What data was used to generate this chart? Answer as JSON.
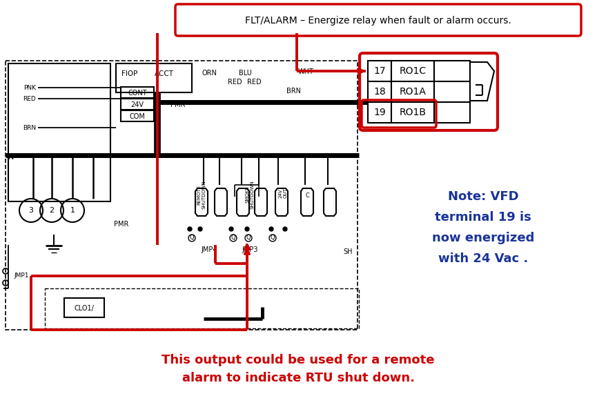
{
  "bg_color": "#ffffff",
  "diagram_color": "#000000",
  "red_color": "#cc0000",
  "blue_color": "#1a3399",
  "top_label": "FLT/ALARM – Energize relay when fault or alarm occurs.",
  "note_lines": [
    "Note: VFD",
    "terminal 19 is",
    "now energized",
    "with 24 Vac ."
  ],
  "bottom_line1": "This output could be used for a remote",
  "bottom_line2": "alarm to indicate RTU shut down.",
  "terminals": [
    [
      17,
      "RO1C"
    ],
    [
      18,
      "RO1A"
    ],
    [
      19,
      "RO1B"
    ]
  ]
}
